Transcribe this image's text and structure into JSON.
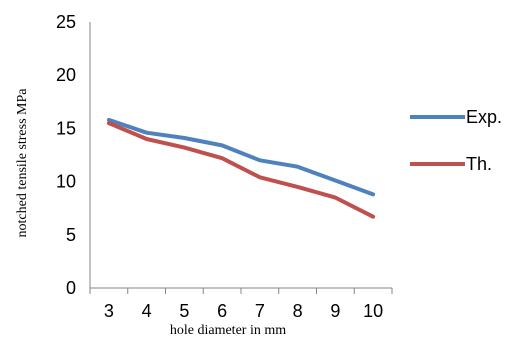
{
  "chart_data": {
    "type": "line",
    "x": [
      3,
      4,
      5,
      6,
      7,
      8,
      9,
      10
    ],
    "xlabel": "hole diameter in mm",
    "ylabel": "notched tensile stress  MPa",
    "ylim": [
      0,
      25
    ],
    "yticks": [
      "0",
      "5",
      "10",
      "15",
      "20",
      "25"
    ],
    "xticks": [
      "3",
      "4",
      "5",
      "6",
      "7",
      "8",
      "9",
      "10"
    ],
    "grid": false,
    "legend_position": "right",
    "series": [
      {
        "name": "Exp.",
        "color": "#4F81BD",
        "values": [
          15.8,
          14.6,
          14.1,
          13.4,
          12.0,
          11.4,
          10.1,
          8.8
        ]
      },
      {
        "name": "Th.",
        "color": "#C0504D",
        "values": [
          15.5,
          14.0,
          13.2,
          12.2,
          10.4,
          9.5,
          8.5,
          6.7
        ]
      }
    ]
  }
}
